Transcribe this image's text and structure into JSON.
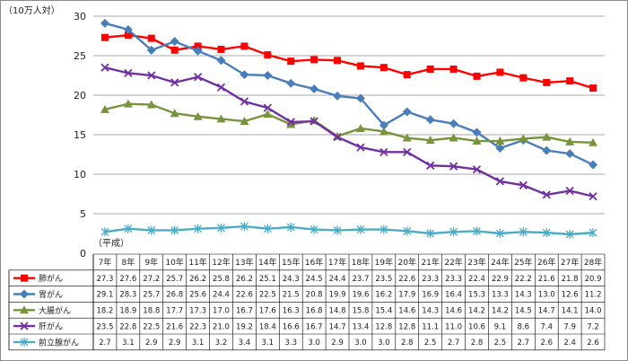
{
  "chart_data": {
    "type": "line",
    "y_unit": "（10万人対）",
    "x_unit": "（平成）",
    "ylim": [
      0,
      30
    ],
    "yticks": [
      0,
      5,
      10,
      15,
      20,
      25,
      30
    ],
    "grid": true,
    "categories": [
      "7年",
      "8年",
      "9年",
      "10年",
      "11年",
      "12年",
      "13年",
      "14年",
      "15年",
      "16年",
      "17年",
      "18年",
      "19年",
      "20年",
      "21年",
      "22年",
      "23年",
      "24年",
      "25年",
      "26年",
      "27年",
      "28年"
    ],
    "series": [
      {
        "name": "肺がん",
        "color": "#ff0000",
        "marker": "square",
        "values": [
          27.3,
          27.6,
          27.2,
          25.7,
          26.2,
          25.8,
          26.2,
          25.1,
          24.3,
          24.5,
          24.4,
          23.7,
          23.5,
          22.6,
          23.3,
          23.3,
          22.4,
          22.9,
          22.2,
          21.6,
          21.8,
          20.9
        ]
      },
      {
        "name": "胃がん",
        "color": "#4a7ebb",
        "marker": "diamond",
        "values": [
          29.1,
          28.3,
          25.7,
          26.8,
          25.6,
          24.4,
          22.6,
          22.5,
          21.5,
          20.8,
          19.9,
          19.6,
          16.2,
          17.9,
          16.9,
          16.4,
          15.3,
          13.3,
          14.3,
          13.0,
          12.6,
          11.2
        ]
      },
      {
        "name": "大腸がん",
        "color": "#77933c",
        "marker": "triangle",
        "values": [
          18.2,
          18.9,
          18.8,
          17.7,
          17.3,
          17.0,
          16.7,
          17.6,
          16.3,
          16.8,
          14.8,
          15.8,
          15.4,
          14.6,
          14.3,
          14.6,
          14.2,
          14.2,
          14.5,
          14.7,
          14.1,
          14.0
        ]
      },
      {
        "name": "肝がん",
        "color": "#7030a0",
        "marker": "x",
        "values": [
          23.5,
          22.8,
          22.5,
          21.6,
          22.3,
          21.0,
          19.2,
          18.4,
          16.6,
          16.7,
          14.7,
          13.4,
          12.8,
          12.8,
          11.1,
          11.0,
          10.6,
          9.1,
          8.6,
          7.4,
          7.9,
          7.2
        ]
      },
      {
        "name": "前立腺がん",
        "color": "#4bacc6",
        "marker": "star",
        "values": [
          2.7,
          3.1,
          2.9,
          2.9,
          3.1,
          3.2,
          3.4,
          3.1,
          3.3,
          3.0,
          2.9,
          3.0,
          3.0,
          2.8,
          2.5,
          2.7,
          2.8,
          2.5,
          2.7,
          2.6,
          2.4,
          2.6
        ]
      }
    ]
  }
}
